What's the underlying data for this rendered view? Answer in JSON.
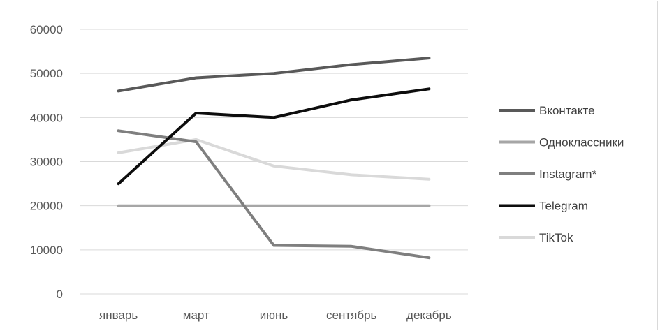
{
  "chart_data": {
    "type": "line",
    "title": "",
    "xlabel": "",
    "ylabel": "",
    "categories": [
      "январь",
      "март",
      "июнь",
      "сентябрь",
      "декабрь"
    ],
    "ylim": [
      0,
      60000
    ],
    "yticks": [
      0,
      10000,
      20000,
      30000,
      40000,
      50000,
      60000
    ],
    "grid": true,
    "legend_position": "right",
    "series": [
      {
        "name": "Вконтакте",
        "color": "#595959",
        "values": [
          46000,
          49000,
          50000,
          52000,
          53500
        ]
      },
      {
        "name": "Одноклассники",
        "color": "#a6a6a6",
        "values": [
          20000,
          20000,
          20000,
          20000,
          20000
        ]
      },
      {
        "name": "Instagram*",
        "color": "#7f7f7f",
        "values": [
          37000,
          34500,
          11000,
          10800,
          8200
        ]
      },
      {
        "name": "Telegram",
        "color": "#0d0d0d",
        "values": [
          25000,
          41000,
          40000,
          44000,
          46500
        ]
      },
      {
        "name": "TikTok",
        "color": "#d9d9d9",
        "values": [
          32000,
          35000,
          29000,
          27000,
          26000
        ]
      }
    ]
  }
}
